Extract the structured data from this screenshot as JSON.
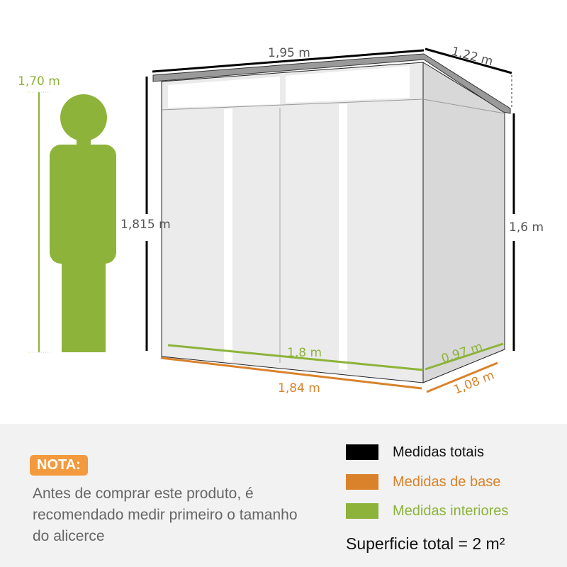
{
  "dimensions": {
    "person_height": "1,70 m",
    "total_width": "1,95 m",
    "total_depth": "1,22 m",
    "total_height": "1,815 m",
    "side_height": "1,6 m",
    "interior_width": "1,8 m",
    "interior_depth": "0,97 m",
    "base_width": "1,84 m",
    "base_depth": "1,08 m"
  },
  "note": {
    "badge": "NOTA:",
    "text": "Antes de comprar este produto, é recomendado medir primeiro o tamanho do alicerce"
  },
  "legend": [
    {
      "label": "Medidas totais",
      "color": "#000000"
    },
    {
      "label": "Medidas de base",
      "color": "#d9822b"
    },
    {
      "label": "Medidas interiores",
      "color": "#8db33a"
    }
  ],
  "surface": "Superficie total = 2 m²",
  "colors": {
    "accent_green": "#8db33a",
    "accent_orange": "#d9822b",
    "badge": "#f39a3e"
  }
}
